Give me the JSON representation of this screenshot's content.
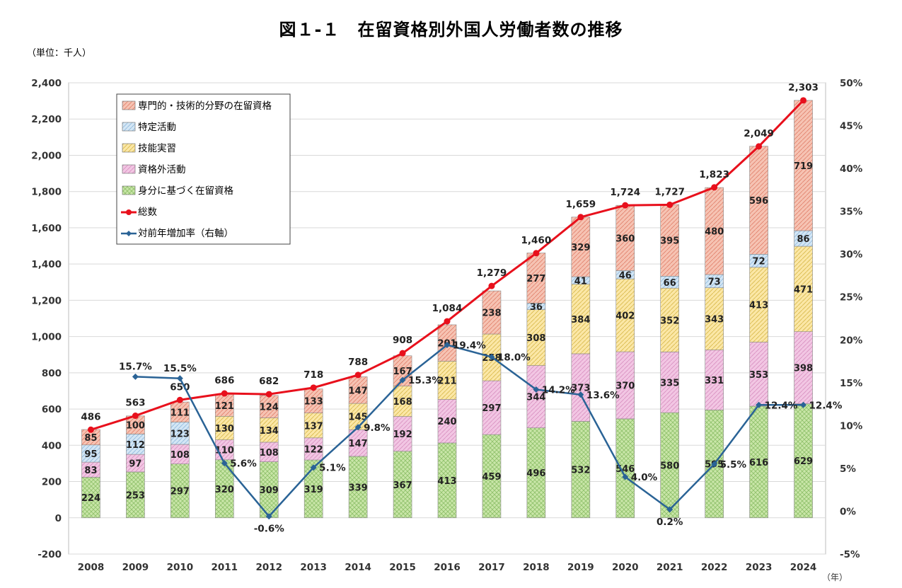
{
  "title": "図１‐１　在留資格別外国人労働者数の推移",
  "unit_label": "（単位：千人）",
  "x_unit_label": "（年）",
  "chart_data": {
    "type": "bar",
    "stacked": true,
    "categories": [
      "2008",
      "2009",
      "2010",
      "2011",
      "2012",
      "2013",
      "2014",
      "2015",
      "2016",
      "2017",
      "2018",
      "2019",
      "2020",
      "2021",
      "2022",
      "2023",
      "2024"
    ],
    "series": [
      {
        "name": "身分に基づく在留資格",
        "color": "#c9e6a8",
        "values": [
          224,
          253,
          297,
          320,
          309,
          319,
          339,
          367,
          413,
          459,
          496,
          532,
          546,
          580,
          595,
          616,
          629
        ]
      },
      {
        "name": "資格外活動",
        "color": "#f2c6e3",
        "values": [
          83,
          97,
          108,
          110,
          108,
          122,
          147,
          192,
          240,
          297,
          344,
          373,
          370,
          335,
          331,
          353,
          398
        ]
      },
      {
        "name": "技能実習",
        "color": "#fbe7a6",
        "values": [
          null,
          null,
          null,
          130,
          134,
          137,
          145,
          168,
          211,
          258,
          308,
          384,
          402,
          352,
          343,
          413,
          471
        ]
      },
      {
        "name": "特定活動",
        "color": "#d3e6f5",
        "values": [
          95,
          112,
          123,
          null,
          null,
          null,
          null,
          null,
          null,
          null,
          36,
          41,
          46,
          66,
          73,
          72,
          86
        ]
      },
      {
        "name": "専門的・技術的分野の在留資格",
        "color": "#f6c3b3",
        "values": [
          85,
          100,
          111,
          121,
          124,
          133,
          147,
          167,
          201,
          238,
          277,
          329,
          360,
          395,
          480,
          596,
          719
        ]
      }
    ],
    "totals": {
      "name": "総数",
      "color": "#e8101c",
      "values": [
        486,
        563,
        650,
        686,
        682,
        718,
        788,
        908,
        1084,
        1279,
        1460,
        1659,
        1724,
        1727,
        1823,
        2049,
        2303
      ]
    },
    "growth_rate": {
      "name": "対前年増加率（右軸）",
      "color": "#2a6396",
      "values": [
        15.7,
        15.5,
        5.6,
        -0.6,
        5.1,
        9.8,
        15.3,
        19.4,
        18.0,
        14.2,
        13.6,
        4.0,
        0.2,
        5.5,
        12.4,
        12.4
      ],
      "categories": [
        "2009",
        "2010",
        "2011",
        "2012",
        "2013",
        "2014",
        "2015",
        "2016",
        "2017",
        "2018",
        "2019",
        "2020",
        "2021",
        "2022",
        "2023",
        "2024"
      ]
    },
    "y_left": {
      "min": -200,
      "max": 2400,
      "ticks": [
        -200,
        0,
        200,
        400,
        600,
        800,
        1000,
        1200,
        1400,
        1600,
        1800,
        2000,
        2200,
        2400
      ]
    },
    "y_right": {
      "min": -5,
      "max": 50,
      "ticks": [
        -5,
        0,
        5,
        10,
        15,
        20,
        25,
        30,
        35,
        40,
        45,
        50
      ],
      "suffix": "%"
    },
    "legend": {
      "placement": "top-left"
    }
  }
}
